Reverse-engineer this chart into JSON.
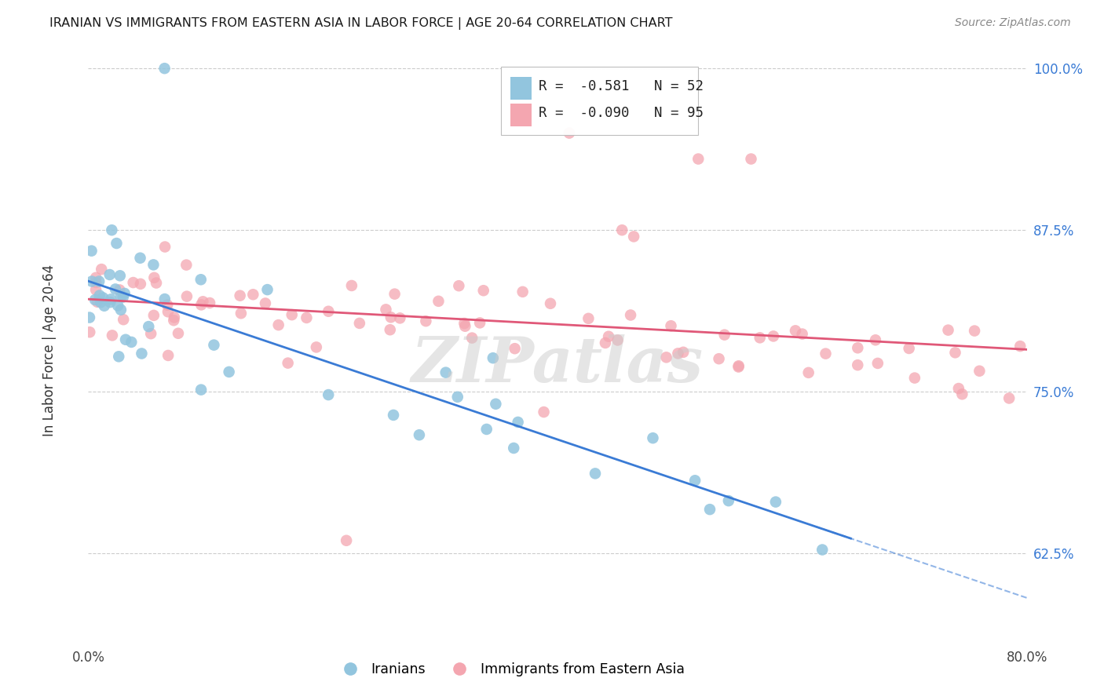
{
  "title": "IRANIAN VS IMMIGRANTS FROM EASTERN ASIA IN LABOR FORCE | AGE 20-64 CORRELATION CHART",
  "source": "Source: ZipAtlas.com",
  "ylabel": "In Labor Force | Age 20-64",
  "legend_label1": "Iranians",
  "legend_label2": "Immigrants from Eastern Asia",
  "r1": -0.581,
  "n1": 52,
  "r2": -0.09,
  "n2": 95,
  "color1": "#92C5DE",
  "color2": "#F4A6B0",
  "line_color1": "#3A7BD5",
  "line_color2": "#E05878",
  "xmin": 0.0,
  "xmax": 0.8,
  "ymin": 0.555,
  "ymax": 1.015,
  "yticks": [
    0.625,
    0.75,
    0.875,
    1.0
  ],
  "ytick_labels": [
    "62.5%",
    "75.0%",
    "87.5%",
    "100.0%"
  ],
  "background_color": "#FFFFFF",
  "watermark_text": "ZIPatlas",
  "watermark_color": "#CCCCCC",
  "watermark_alpha": 0.5
}
